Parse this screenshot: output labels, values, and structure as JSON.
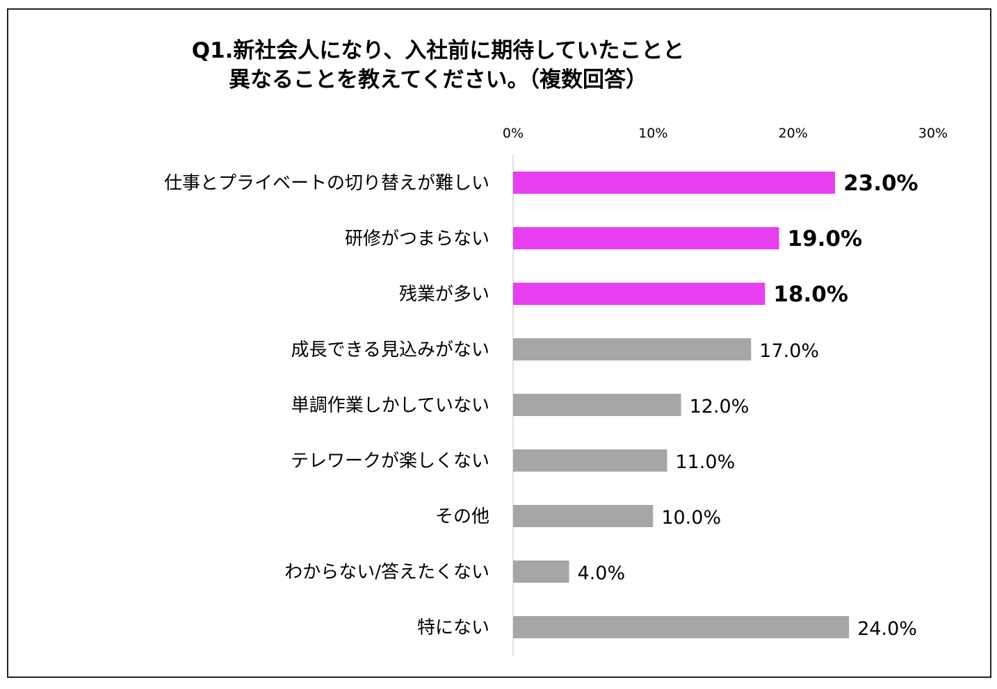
{
  "title_lines": [
    "Q1.新社会人になり、入社前に期待していたことと",
    "異なることを教えてください。（複数回答）"
  ],
  "colors": {
    "highlight": "#e83ff0",
    "normal": "#a6a6a6",
    "axis": "#d9d9d9",
    "text": "#000000"
  },
  "chart_data": {
    "type": "bar",
    "orientation": "horizontal",
    "categories": [
      "仕事とプライベートの切り替えが難しい",
      "研修がつまらない",
      "残業が多い",
      "成長できる見込みがない",
      "単調作業しかしていない",
      "テレワークが楽しくない",
      "その他",
      "わからない/答えたくない",
      "特にない"
    ],
    "values": [
      23.0,
      19.0,
      18.0,
      17.0,
      12.0,
      11.0,
      10.0,
      4.0,
      24.0
    ],
    "value_labels": [
      "23.0%",
      "19.0%",
      "18.0%",
      "17.0%",
      "12.0%",
      "11.0%",
      "10.0%",
      "4.0%",
      "24.0%"
    ],
    "highlighted": [
      true,
      true,
      true,
      false,
      false,
      false,
      false,
      false,
      false
    ],
    "xlim": [
      0,
      30
    ],
    "x_ticks": [
      0,
      10,
      20,
      30
    ],
    "x_tick_labels": [
      "0%",
      "10%",
      "20%",
      "30%"
    ],
    "x_axis_position": "top",
    "grid": false,
    "legend": "none"
  }
}
